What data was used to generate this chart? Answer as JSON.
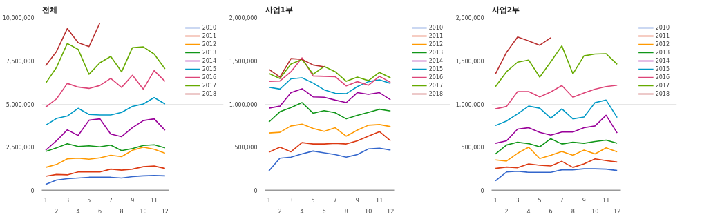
{
  "chart_data": [
    {
      "type": "line",
      "title": "전체",
      "categories": [
        "1",
        "2",
        "3",
        "4",
        "5",
        "6",
        "7",
        "8",
        "9",
        "10",
        "11",
        "12"
      ],
      "ylim": [
        0,
        10000000
      ],
      "yticks": [
        0,
        {
          "value": 2500000,
          "label": "2,500,000"
        },
        {
          "value": 5000000,
          "label": "5,000,000"
        },
        {
          "value": 7500000,
          "label": "7,500,000"
        },
        {
          "value": 10000000,
          "label": "10,000,000"
        }
      ],
      "grid": "y",
      "legend": "right",
      "series": [
        {
          "name": "2010",
          "color": "#3366cc",
          "values": [
            350000,
            600000,
            680000,
            720000,
            760000,
            760000,
            760000,
            720000,
            800000,
            840000,
            860000,
            840000
          ]
        },
        {
          "name": "2011",
          "color": "#dc3912",
          "values": [
            820000,
            920000,
            900000,
            1065000,
            1065000,
            1065000,
            1230000,
            1170000,
            1230000,
            1370000,
            1410000,
            1270000
          ]
        },
        {
          "name": "2012",
          "color": "#ff9900",
          "values": [
            1330000,
            1500000,
            1820000,
            1860000,
            1800000,
            1880000,
            2030000,
            1950000,
            2320000,
            2500000,
            2380000,
            2150000
          ]
        },
        {
          "name": "2013",
          "color": "#109618",
          "values": [
            2250000,
            2460000,
            2700000,
            2540000,
            2580000,
            2520000,
            2620000,
            2300000,
            2420000,
            2600000,
            2640000,
            2460000
          ]
        },
        {
          "name": "2014",
          "color": "#990099",
          "values": [
            2320000,
            2870000,
            3500000,
            3180000,
            4060000,
            4140000,
            3260000,
            3110000,
            3630000,
            4040000,
            4140000,
            3480000
          ]
        },
        {
          "name": "2015",
          "color": "#0099c6",
          "values": [
            3770000,
            4160000,
            4300000,
            4750000,
            4390000,
            4360000,
            4360000,
            4510000,
            4860000,
            5000000,
            5370000,
            5000000
          ]
        },
        {
          "name": "2016",
          "color": "#dd4477",
          "values": [
            4820000,
            5290000,
            6190000,
            5980000,
            5900000,
            6070000,
            6480000,
            5960000,
            6660000,
            5860000,
            6930000,
            6310000
          ]
        },
        {
          "name": "2017",
          "color": "#66aa00",
          "values": [
            6190000,
            7110000,
            8500000,
            8160000,
            6720000,
            7380000,
            7750000,
            6860000,
            8260000,
            8300000,
            7890000,
            7030000
          ]
        },
        {
          "name": "2018",
          "color": "#b82e2e",
          "values": [
            7210000,
            8030000,
            9360000,
            8550000,
            8320000,
            9690000,
            null,
            null,
            null,
            null,
            null,
            null
          ]
        }
      ]
    },
    {
      "type": "line",
      "title": "사업1부",
      "categories": [
        "1",
        "2",
        "3",
        "4",
        "5",
        "6",
        "7",
        "8",
        "9",
        "10",
        "11",
        "12"
      ],
      "ylim": [
        0,
        2000000
      ],
      "yticks": [
        0,
        {
          "value": 500000,
          "label": "500,000"
        },
        {
          "value": 1000000,
          "label": "1,000,000"
        },
        {
          "value": 1500000,
          "label": "1,500,000"
        },
        {
          "value": 2000000,
          "label": "2,000,000"
        }
      ],
      "grid": "y",
      "legend": "right",
      "series": [
        {
          "name": "2010",
          "color": "#3366cc",
          "values": [
            225000,
            373000,
            385000,
            422000,
            455000,
            434000,
            414000,
            385000,
            414000,
            480000,
            488000,
            467000
          ]
        },
        {
          "name": "2011",
          "color": "#dc3912",
          "values": [
            443000,
            500000,
            447000,
            553000,
            537000,
            537000,
            545000,
            537000,
            574000,
            627000,
            680000,
            574000
          ]
        },
        {
          "name": "2012",
          "color": "#ff9900",
          "values": [
            664000,
            672000,
            746000,
            766000,
            717000,
            684000,
            725000,
            627000,
            697000,
            754000,
            762000,
            738000
          ]
        },
        {
          "name": "2013",
          "color": "#109618",
          "values": [
            791000,
            910000,
            959000,
            1016000,
            893000,
            922000,
            898000,
            828000,
            869000,
            902000,
            939000,
            918000
          ]
        },
        {
          "name": "2014",
          "color": "#990099",
          "values": [
            951000,
            975000,
            1131000,
            1176000,
            1082000,
            1078000,
            1045000,
            1016000,
            1131000,
            1111000,
            1131000,
            1049000
          ]
        },
        {
          "name": "2015",
          "color": "#0099c6",
          "values": [
            1193000,
            1172000,
            1291000,
            1303000,
            1242000,
            1164000,
            1123000,
            1119000,
            1201000,
            1258000,
            1279000,
            1238000
          ]
        },
        {
          "name": "2016",
          "color": "#dd4477",
          "values": [
            1262000,
            1266000,
            1373000,
            1533000,
            1324000,
            1320000,
            1316000,
            1209000,
            1258000,
            1217000,
            1320000,
            1250000
          ]
        },
        {
          "name": "2017",
          "color": "#66aa00",
          "values": [
            1352000,
            1295000,
            1463000,
            1516000,
            1344000,
            1434000,
            1373000,
            1262000,
            1311000,
            1270000,
            1365000,
            1303000
          ]
        },
        {
          "name": "2018",
          "color": "#b82e2e",
          "values": [
            1402000,
            1311000,
            1525000,
            1516000,
            1451000,
            1430000,
            null,
            null,
            null,
            null,
            null,
            null
          ]
        }
      ]
    },
    {
      "type": "line",
      "title": "사업2부",
      "categories": [
        "1",
        "2",
        "3",
        "4",
        "5",
        "6",
        "7",
        "8",
        "9",
        "10",
        "11",
        "12"
      ],
      "ylim": [
        0,
        2000000
      ],
      "yticks": [
        0,
        {
          "value": 500000,
          "label": "500,000"
        },
        {
          "value": 1000000,
          "label": "1,000,000"
        },
        {
          "value": 1500000,
          "label": "1,500,000"
        },
        {
          "value": 2000000,
          "label": "2,000,000"
        }
      ],
      "grid": "y",
      "legend": "right",
      "series": [
        {
          "name": "2010",
          "color": "#3366cc",
          "values": [
            111000,
            213000,
            221000,
            209000,
            209000,
            209000,
            238000,
            238000,
            250000,
            250000,
            246000,
            230000
          ]
        },
        {
          "name": "2011",
          "color": "#dc3912",
          "values": [
            254000,
            270000,
            262000,
            307000,
            291000,
            283000,
            336000,
            266000,
            307000,
            365000,
            344000,
            328000
          ]
        },
        {
          "name": "2012",
          "color": "#ff9900",
          "values": [
            352000,
            340000,
            430000,
            500000,
            369000,
            406000,
            451000,
            406000,
            467000,
            422000,
            492000,
            447000
          ]
        },
        {
          "name": "2013",
          "color": "#109618",
          "values": [
            422000,
            525000,
            557000,
            541000,
            504000,
            598000,
            537000,
            557000,
            545000,
            566000,
            582000,
            545000
          ]
        },
        {
          "name": "2014",
          "color": "#990099",
          "values": [
            545000,
            574000,
            709000,
            725000,
            672000,
            639000,
            676000,
            676000,
            725000,
            746000,
            869000,
            664000
          ]
        },
        {
          "name": "2015",
          "color": "#0099c6",
          "values": [
            750000,
            803000,
            885000,
            975000,
            951000,
            836000,
            943000,
            828000,
            848000,
            1016000,
            1045000,
            844000
          ]
        },
        {
          "name": "2016",
          "color": "#dd4477",
          "values": [
            943000,
            971000,
            1143000,
            1143000,
            1082000,
            1139000,
            1213000,
            1078000,
            1127000,
            1172000,
            1201000,
            1217000
          ]
        },
        {
          "name": "2017",
          "color": "#66aa00",
          "values": [
            1201000,
            1373000,
            1484000,
            1508000,
            1311000,
            1488000,
            1672000,
            1348000,
            1557000,
            1578000,
            1582000,
            1459000
          ]
        },
        {
          "name": "2018",
          "color": "#b82e2e",
          "values": [
            1348000,
            1598000,
            1775000,
            1730000,
            1680000,
            1766000,
            null,
            null,
            null,
            null,
            null,
            null
          ]
        }
      ]
    }
  ]
}
